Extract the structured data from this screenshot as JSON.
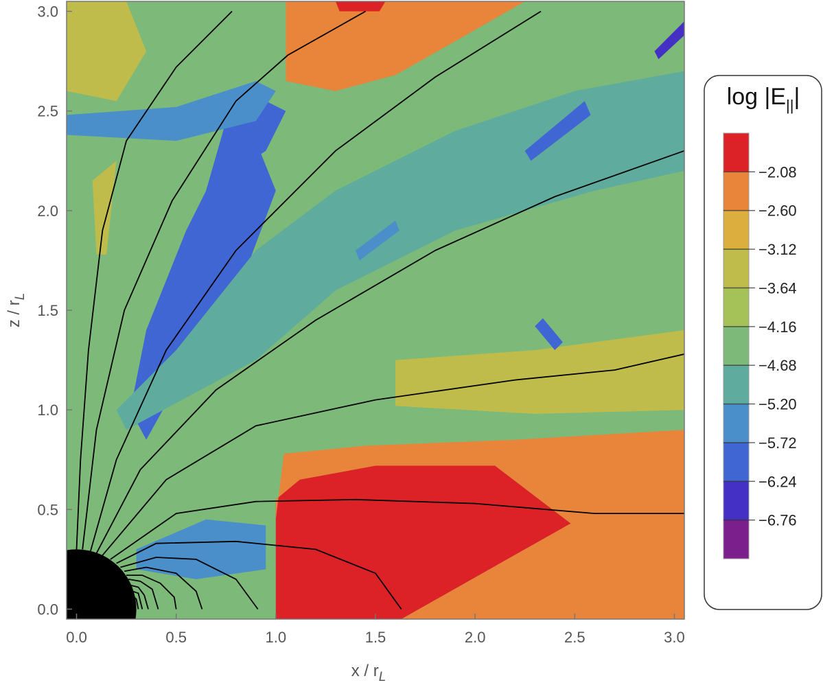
{
  "chart_data": {
    "type": "heatmap",
    "title": "",
    "xlabel": "x / r",
    "xlabel_sub": "L",
    "ylabel": "z / r",
    "ylabel_sub": "L",
    "xlim": [
      -0.05,
      3.05
    ],
    "ylim": [
      -0.05,
      3.05
    ],
    "x_ticks": [
      "0.0",
      "0.5",
      "1.0",
      "1.5",
      "2.0",
      "2.5",
      "3.0"
    ],
    "y_ticks": [
      "0.0",
      "0.5",
      "1.0",
      "1.5",
      "2.0",
      "2.5",
      "3.0"
    ],
    "grid": false,
    "colorbar": {
      "title_prefix": "log |E",
      "title_sub": "||",
      "title_suffix": "|",
      "ticks": [
        "-2.08",
        "-2.60",
        "-3.12",
        "-3.64",
        "-4.16",
        "-4.68",
        "-5.20",
        "-5.72",
        "-6.24",
        "-6.76"
      ],
      "levels": [
        {
          "label": "≥ -2.08",
          "color": "#dc2127"
        },
        {
          "label": "-2.60 to -2.08",
          "color": "#e8853a"
        },
        {
          "label": "-3.12 to -2.60",
          "color": "#dbae3e"
        },
        {
          "label": "-3.64 to -3.12",
          "color": "#bfbc4c"
        },
        {
          "label": "-4.16 to -3.64",
          "color": "#a4c258"
        },
        {
          "label": "-4.68 to -4.16",
          "color": "#7db979"
        },
        {
          "label": "-5.20 to -4.68",
          "color": "#5fab9e"
        },
        {
          "label": "-5.72 to -5.20",
          "color": "#4a8fc9"
        },
        {
          "label": "-6.24 to -5.72",
          "color": "#3f66d3"
        },
        {
          "label": "-6.76 to -6.24",
          "color": "#4430c4"
        },
        {
          "label": "< -6.76",
          "color": "#7b1f8c"
        }
      ]
    },
    "regions": [
      {
        "name": "dense-red-equatorial-wedge",
        "level": 0,
        "points": [
          [
            1.0,
            -0.05
          ],
          [
            1.0,
            0.55
          ],
          [
            1.12,
            0.65
          ],
          [
            1.5,
            0.72
          ],
          [
            2.1,
            0.72
          ],
          [
            2.48,
            0.43
          ],
          [
            1.63,
            -0.05
          ]
        ]
      },
      {
        "name": "orange-equatorial-zone",
        "level": 1,
        "points": [
          [
            1.0,
            0.45
          ],
          [
            1.04,
            0.78
          ],
          [
            1.45,
            0.82
          ],
          [
            2.2,
            0.85
          ],
          [
            3.05,
            0.9
          ],
          [
            3.05,
            -0.05
          ],
          [
            1.63,
            -0.05
          ],
          [
            2.48,
            0.43
          ],
          [
            2.1,
            0.72
          ],
          [
            1.5,
            0.72
          ],
          [
            1.12,
            0.65
          ],
          [
            1.0,
            0.55
          ]
        ]
      },
      {
        "name": "top-orange-plume",
        "level": 1,
        "points": [
          [
            1.05,
            3.05
          ],
          [
            1.05,
            2.65
          ],
          [
            1.3,
            2.6
          ],
          [
            1.6,
            2.68
          ],
          [
            1.9,
            2.85
          ],
          [
            2.25,
            3.05
          ]
        ]
      },
      {
        "name": "top-red-spot",
        "level": 0,
        "points": [
          [
            1.3,
            3.05
          ],
          [
            1.32,
            3.0
          ],
          [
            1.52,
            3.0
          ],
          [
            1.55,
            3.05
          ]
        ]
      },
      {
        "name": "yellow-upper-left",
        "level": 3,
        "points": [
          [
            -0.05,
            3.05
          ],
          [
            0.25,
            3.05
          ],
          [
            0.35,
            2.8
          ],
          [
            0.2,
            2.55
          ],
          [
            -0.05,
            2.6
          ]
        ]
      },
      {
        "name": "yellow-left-lobe",
        "level": 3,
        "points": [
          [
            0.08,
            2.15
          ],
          [
            0.2,
            2.25
          ],
          [
            0.15,
            1.78
          ],
          [
            0.1,
            1.78
          ]
        ]
      },
      {
        "name": "yellow-right-band",
        "level": 3,
        "points": [
          [
            1.6,
            1.25
          ],
          [
            2.3,
            1.3
          ],
          [
            3.05,
            1.4
          ],
          [
            3.05,
            1.0
          ],
          [
            2.3,
            0.98
          ],
          [
            1.6,
            1.02
          ]
        ]
      },
      {
        "name": "blue-jet-main",
        "level": 8,
        "points": [
          [
            0.35,
            0.85
          ],
          [
            0.6,
            1.3
          ],
          [
            0.85,
            1.7
          ],
          [
            1.0,
            2.1
          ],
          [
            0.9,
            2.35
          ],
          [
            0.75,
            2.3
          ],
          [
            0.55,
            1.9
          ],
          [
            0.35,
            1.4
          ],
          [
            0.27,
            1.0
          ]
        ]
      },
      {
        "name": "blue-jet-upper",
        "level": 8,
        "points": [
          [
            0.65,
            2.1
          ],
          [
            0.95,
            2.3
          ],
          [
            1.05,
            2.5
          ],
          [
            0.95,
            2.55
          ],
          [
            0.75,
            2.45
          ]
        ]
      },
      {
        "name": "blue-upper-band",
        "level": 7,
        "points": [
          [
            -0.05,
            2.38
          ],
          [
            0.5,
            2.35
          ],
          [
            0.9,
            2.45
          ],
          [
            1.0,
            2.6
          ],
          [
            0.9,
            2.65
          ],
          [
            0.5,
            2.52
          ],
          [
            -0.05,
            2.48
          ]
        ]
      },
      {
        "name": "teal-central-band",
        "level": 6,
        "points": [
          [
            0.25,
            0.9
          ],
          [
            0.9,
            1.25
          ],
          [
            1.3,
            1.6
          ],
          [
            1.9,
            1.9
          ],
          [
            2.6,
            2.1
          ],
          [
            3.05,
            2.2
          ],
          [
            3.05,
            2.7
          ],
          [
            2.5,
            2.6
          ],
          [
            1.9,
            2.4
          ],
          [
            1.3,
            2.1
          ],
          [
            0.9,
            1.8
          ],
          [
            0.5,
            1.3
          ],
          [
            0.2,
            1.0
          ]
        ]
      },
      {
        "name": "blue-streak-1",
        "level": 7,
        "points": [
          [
            1.4,
            1.8
          ],
          [
            1.6,
            1.95
          ],
          [
            1.62,
            1.9
          ],
          [
            1.42,
            1.75
          ]
        ]
      },
      {
        "name": "blue-streak-2",
        "level": 8,
        "points": [
          [
            2.25,
            2.3
          ],
          [
            2.55,
            2.55
          ],
          [
            2.58,
            2.48
          ],
          [
            2.28,
            2.25
          ]
        ]
      },
      {
        "name": "blue-streak-3",
        "level": 9,
        "points": [
          [
            2.9,
            2.8
          ],
          [
            3.05,
            2.95
          ],
          [
            3.05,
            2.88
          ],
          [
            2.92,
            2.76
          ]
        ]
      },
      {
        "name": "blue-streak-4",
        "level": 8,
        "points": [
          [
            2.3,
            1.42
          ],
          [
            2.4,
            1.3
          ],
          [
            2.44,
            1.34
          ],
          [
            2.34,
            1.46
          ]
        ]
      },
      {
        "name": "blue-low-near-star",
        "level": 7,
        "points": [
          [
            0.3,
            0.3
          ],
          [
            0.65,
            0.45
          ],
          [
            0.95,
            0.42
          ],
          [
            0.95,
            0.2
          ],
          [
            0.6,
            0.15
          ],
          [
            0.3,
            0.2
          ]
        ]
      }
    ],
    "field_lines": [
      [
        [
          0.0,
          0.3
        ],
        [
          0.02,
          0.75
        ],
        [
          0.06,
          1.3
        ],
        [
          0.13,
          1.9
        ],
        [
          0.25,
          2.35
        ],
        [
          0.5,
          2.72
        ],
        [
          0.78,
          3.0
        ]
      ],
      [
        [
          0.03,
          0.3
        ],
        [
          0.1,
          0.9
        ],
        [
          0.24,
          1.5
        ],
        [
          0.48,
          2.05
        ],
        [
          0.8,
          2.55
        ],
        [
          1.06,
          2.78
        ],
        [
          1.45,
          3.0
        ]
      ],
      [
        [
          0.07,
          0.29
        ],
        [
          0.2,
          0.75
        ],
        [
          0.45,
          1.3
        ],
        [
          0.8,
          1.8
        ],
        [
          1.3,
          2.3
        ],
        [
          1.8,
          2.67
        ],
        [
          2.33,
          3.0
        ]
      ],
      [
        [
          0.1,
          0.28
        ],
        [
          0.32,
          0.7
        ],
        [
          0.7,
          1.1
        ],
        [
          1.2,
          1.45
        ],
        [
          1.8,
          1.8
        ],
        [
          2.4,
          2.07
        ],
        [
          3.05,
          2.3
        ]
      ],
      [
        [
          0.13,
          0.27
        ],
        [
          0.45,
          0.65
        ],
        [
          0.9,
          0.92
        ],
        [
          1.5,
          1.05
        ],
        [
          2.2,
          1.15
        ],
        [
          2.7,
          1.2
        ],
        [
          3.05,
          1.28
        ]
      ],
      [
        [
          0.17,
          0.25
        ],
        [
          0.5,
          0.48
        ],
        [
          0.9,
          0.54
        ],
        [
          1.4,
          0.55
        ],
        [
          2.0,
          0.53
        ],
        [
          2.6,
          0.48
        ],
        [
          3.05,
          0.48
        ]
      ],
      [
        [
          0.2,
          0.23
        ],
        [
          0.4,
          0.33
        ],
        [
          0.8,
          0.34
        ],
        [
          1.2,
          0.3
        ],
        [
          1.5,
          0.18
        ],
        [
          1.63,
          0.0
        ]
      ],
      [
        [
          0.22,
          0.21
        ],
        [
          0.4,
          0.26
        ],
        [
          0.6,
          0.25
        ],
        [
          0.8,
          0.15
        ],
        [
          0.91,
          0.0
        ]
      ],
      [
        [
          0.24,
          0.19
        ],
        [
          0.35,
          0.21
        ],
        [
          0.5,
          0.18
        ],
        [
          0.6,
          0.09
        ],
        [
          0.63,
          0.0
        ]
      ],
      [
        [
          0.25,
          0.17
        ],
        [
          0.33,
          0.17
        ],
        [
          0.42,
          0.13
        ],
        [
          0.49,
          0.06
        ],
        [
          0.5,
          0.0
        ]
      ],
      [
        [
          0.26,
          0.15
        ],
        [
          0.32,
          0.14
        ],
        [
          0.38,
          0.1
        ],
        [
          0.41,
          0.0
        ]
      ],
      [
        [
          0.27,
          0.12
        ],
        [
          0.31,
          0.11
        ],
        [
          0.34,
          0.07
        ],
        [
          0.36,
          0.0
        ]
      ],
      [
        [
          0.28,
          0.09
        ],
        [
          0.31,
          0.08
        ],
        [
          0.33,
          0.0
        ]
      ],
      [
        [
          0.29,
          0.06
        ],
        [
          0.3,
          0.05
        ],
        [
          0.31,
          0.0
        ]
      ]
    ],
    "central_body": {
      "shape": "quarter-disk",
      "radius": 0.3
    }
  }
}
